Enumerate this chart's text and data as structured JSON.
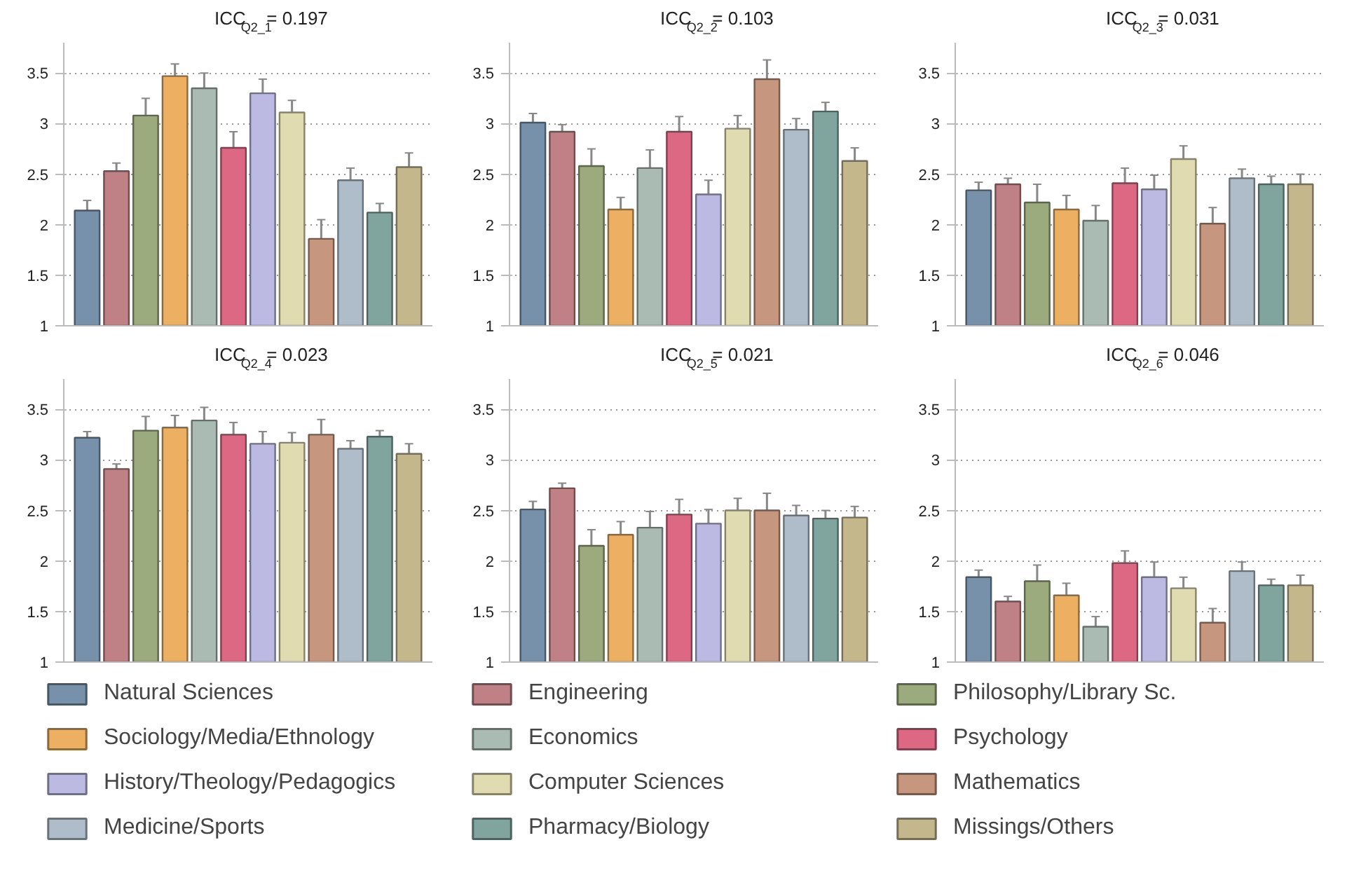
{
  "chart_data": [
    {
      "type": "bar",
      "title": "ICC$_{Q2_1}$= 0.197",
      "categories": [
        null
      ],
      "ylim": [
        1,
        3.8
      ],
      "yticks": [
        1,
        1.5,
        2,
        2.5,
        3,
        3.5
      ],
      "grid": "y",
      "tick_labels": "y",
      "legend": "bottom",
      "series": [
        {
          "name": "Natural Sciences",
          "color": "#7791ab",
          "values": [
            2.14
          ],
          "errors": [
            0.1
          ]
        },
        {
          "name": "Engineering",
          "color": "#bf8186",
          "values": [
            2.53
          ],
          "errors": [
            0.08
          ]
        },
        {
          "name": "Philosophy/Library Sc.",
          "color": "#9bab7d",
          "values": [
            3.08
          ],
          "errors": [
            0.17
          ]
        },
        {
          "name": "Sociology/Media/Ethnology",
          "color": "#edb062",
          "values": [
            3.47
          ],
          "errors": [
            0.12
          ]
        },
        {
          "name": "Economics",
          "color": "#a9bbb3",
          "values": [
            3.35
          ],
          "errors": [
            0.15
          ]
        },
        {
          "name": "Psychology",
          "color": "#dc6883",
          "values": [
            2.76
          ],
          "errors": [
            0.16
          ]
        },
        {
          "name": "History/Theology/Pedagogics",
          "color": "#bcb9e3",
          "values": [
            3.3
          ],
          "errors": [
            0.14
          ]
        },
        {
          "name": "Computer Sciences",
          "color": "#e0dbb0",
          "values": [
            3.11
          ],
          "errors": [
            0.12
          ]
        },
        {
          "name": "Mathematics",
          "color": "#c6967e",
          "values": [
            1.86
          ],
          "errors": [
            0.19
          ]
        },
        {
          "name": "Medicine/Sports",
          "color": "#afbdca",
          "values": [
            2.44
          ],
          "errors": [
            0.12
          ]
        },
        {
          "name": "Pharmacy/Biology",
          "color": "#80a59f",
          "values": [
            2.12
          ],
          "errors": [
            0.09
          ]
        },
        {
          "name": "Missings/Others",
          "color": "#c4b78c",
          "values": [
            2.57
          ],
          "errors": [
            0.14
          ]
        }
      ]
    },
    {
      "type": "bar",
      "title": "ICC$_{Q2_2}$= 0.103",
      "categories": [
        null,
        null,
        null,
        null,
        null,
        null,
        null,
        null,
        null,
        null,
        null,
        null
      ],
      "ylim": [
        1,
        3.8
      ],
      "yticks": [
        1,
        1.5,
        2,
        2.5,
        3,
        3.5
      ],
      "grid": "y",
      "tick_labels": "y",
      "colors": [
        "#7791ab",
        "#bf8186",
        "#9bab7d",
        "#edb062",
        "#a9bbb3",
        "#dc6883",
        "#bcb9e3",
        "#e0dbb0",
        "#c6967e",
        "#afbdca",
        "#80a59f",
        "#c4b78c"
      ],
      "values": [
        3.01,
        2.92,
        2.58,
        2.15,
        2.56,
        2.92,
        2.3,
        2.95,
        3.44,
        2.94,
        3.12,
        2.63
      ],
      "errors": [
        0.09,
        0.07,
        0.17,
        0.12,
        0.18,
        0.15,
        0.14,
        0.13,
        0.19,
        0.11,
        0.09,
        0.13
      ]
    },
    {
      "type": "bar",
      "title": "ICC$_{Q2_3}$= 0.031",
      "categories": [
        null,
        null,
        null,
        null,
        null,
        null,
        null,
        null,
        null,
        null,
        null,
        null
      ],
      "ylim": [
        1,
        3.8
      ],
      "yticks": [
        1,
        1.5,
        2,
        2.5,
        3,
        3.5
      ],
      "grid": "y",
      "tick_labels": "y",
      "colors": [
        "#7791ab",
        "#bf8186",
        "#9bab7d",
        "#edb062",
        "#a9bbb3",
        "#dc6883",
        "#bcb9e3",
        "#e0dbb0",
        "#c6967e",
        "#afbdca",
        "#80a59f",
        "#c4b78c"
      ],
      "values": [
        2.34,
        2.4,
        2.22,
        2.15,
        2.04,
        2.41,
        2.35,
        2.65,
        2.01,
        2.46,
        2.4,
        2.4
      ],
      "errors": [
        0.08,
        0.06,
        0.18,
        0.14,
        0.15,
        0.15,
        0.14,
        0.13,
        0.16,
        0.09,
        0.08,
        0.1
      ]
    },
    {
      "type": "bar",
      "title": "ICC$_{Q2_4}$= 0.023",
      "categories": [
        null,
        null,
        null,
        null,
        null,
        null,
        null,
        null,
        null,
        null,
        null,
        null
      ],
      "ylim": [
        1,
        3.8
      ],
      "yticks": [
        1,
        1.5,
        2,
        2.5,
        3,
        3.5
      ],
      "grid": "y",
      "tick_labels": "y",
      "colors": [
        "#7791ab",
        "#bf8186",
        "#9bab7d",
        "#edb062",
        "#a9bbb3",
        "#dc6883",
        "#bcb9e3",
        "#e0dbb0",
        "#c6967e",
        "#afbdca",
        "#80a59f",
        "#c4b78c"
      ],
      "values": [
        3.22,
        2.91,
        3.29,
        3.32,
        3.39,
        3.25,
        3.16,
        3.17,
        3.25,
        3.11,
        3.23,
        3.06
      ],
      "errors": [
        0.06,
        0.05,
        0.14,
        0.12,
        0.13,
        0.12,
        0.12,
        0.1,
        0.15,
        0.08,
        0.06,
        0.1
      ]
    },
    {
      "type": "bar",
      "title": "ICC$_{Q2_5}$= 0.021",
      "categories": [
        null,
        null,
        null,
        null,
        null,
        null,
        null,
        null,
        null,
        null,
        null,
        null
      ],
      "ylim": [
        1,
        3.8
      ],
      "yticks": [
        1,
        1.5,
        2,
        2.5,
        3,
        3.5
      ],
      "grid": "y",
      "tick_labels": "y",
      "colors": [
        "#7791ab",
        "#bf8186",
        "#9bab7d",
        "#edb062",
        "#a9bbb3",
        "#dc6883",
        "#bcb9e3",
        "#e0dbb0",
        "#c6967e",
        "#afbdca",
        "#80a59f",
        "#c4b78c"
      ],
      "values": [
        2.51,
        2.72,
        2.15,
        2.26,
        2.33,
        2.46,
        2.37,
        2.5,
        2.5,
        2.45,
        2.42,
        2.43
      ],
      "errors": [
        0.08,
        0.05,
        0.16,
        0.13,
        0.16,
        0.15,
        0.14,
        0.12,
        0.17,
        0.1,
        0.08,
        0.11
      ]
    },
    {
      "type": "bar",
      "title": "ICC$_{Q2_6}$= 0.046",
      "categories": [
        null,
        null,
        null,
        null,
        null,
        null,
        null,
        null,
        null,
        null,
        null,
        null
      ],
      "ylim": [
        1,
        3.8
      ],
      "yticks": [
        1,
        1.5,
        2,
        2.5,
        3,
        3.5
      ],
      "grid": "y",
      "tick_labels": "y",
      "colors": [
        "#7791ab",
        "#bf8186",
        "#9bab7d",
        "#edb062",
        "#a9bbb3",
        "#dc6883",
        "#bcb9e3",
        "#e0dbb0",
        "#c6967e",
        "#afbdca",
        "#80a59f",
        "#c4b78c"
      ],
      "values": [
        1.84,
        1.6,
        1.8,
        1.66,
        1.35,
        1.98,
        1.84,
        1.73,
        1.39,
        1.9,
        1.76,
        1.76
      ],
      "errors": [
        0.07,
        0.05,
        0.16,
        0.12,
        0.1,
        0.12,
        0.15,
        0.11,
        0.14,
        0.09,
        0.06,
        0.1
      ]
    }
  ]
}
